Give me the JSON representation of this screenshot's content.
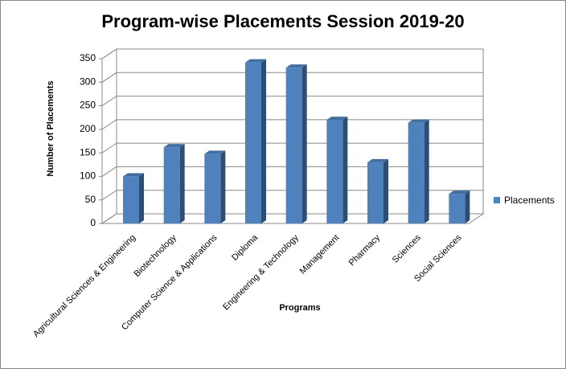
{
  "chart_data": {
    "type": "bar3d",
    "title": "Program-wise Placements Session 2019-20",
    "x_label": "Programs",
    "y_label": "Number of Placements",
    "categories": [
      "Agricultural Sciences & Engineering",
      "Biotechnology",
      "Computer Science & Applications",
      "Diploma",
      "Engineering & Technology",
      "Management",
      "Pharmacy",
      "Sciences",
      "Social Sciences"
    ],
    "series": [
      {
        "name": "Placements",
        "color": "#4f81bd",
        "values": [
          100,
          162,
          148,
          342,
          331,
          220,
          130,
          214,
          63
        ]
      }
    ],
    "ylim": [
      0,
      350
    ],
    "yticks": [
      0,
      50,
      100,
      150,
      200,
      250,
      300,
      350
    ],
    "grid": true,
    "legend": "right"
  }
}
